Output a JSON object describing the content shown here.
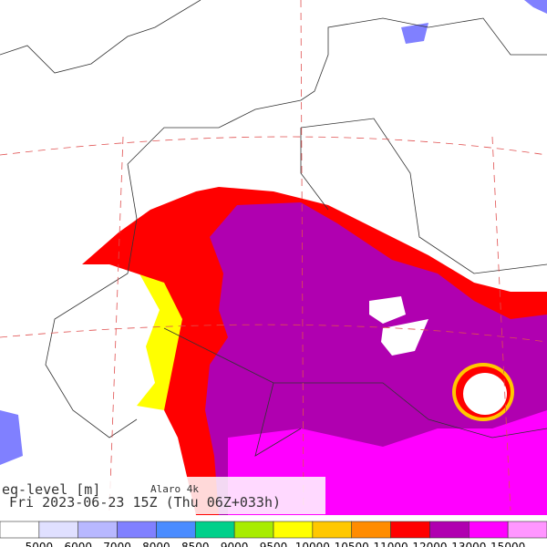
{
  "header": {
    "title": "eq-level [m]",
    "model": "Alaro 4k",
    "valid": "Fri 2023-06-23 15Z (Thu 06Z+033h)"
  },
  "colorbar": {
    "colors": [
      "#ffffff",
      "#e0e0ff",
      "#b8b8ff",
      "#8080ff",
      "#4a8cff",
      "#00d08a",
      "#a8ec00",
      "#ffff00",
      "#ffc800",
      "#ff8c00",
      "#ff0000",
      "#b000b0",
      "#ff00ff",
      "#ff96ff"
    ],
    "labels": [
      5000,
      6000,
      7000,
      8000,
      8500,
      9000,
      9500,
      10000,
      10500,
      11000,
      12000,
      13000,
      15000
    ]
  }
}
